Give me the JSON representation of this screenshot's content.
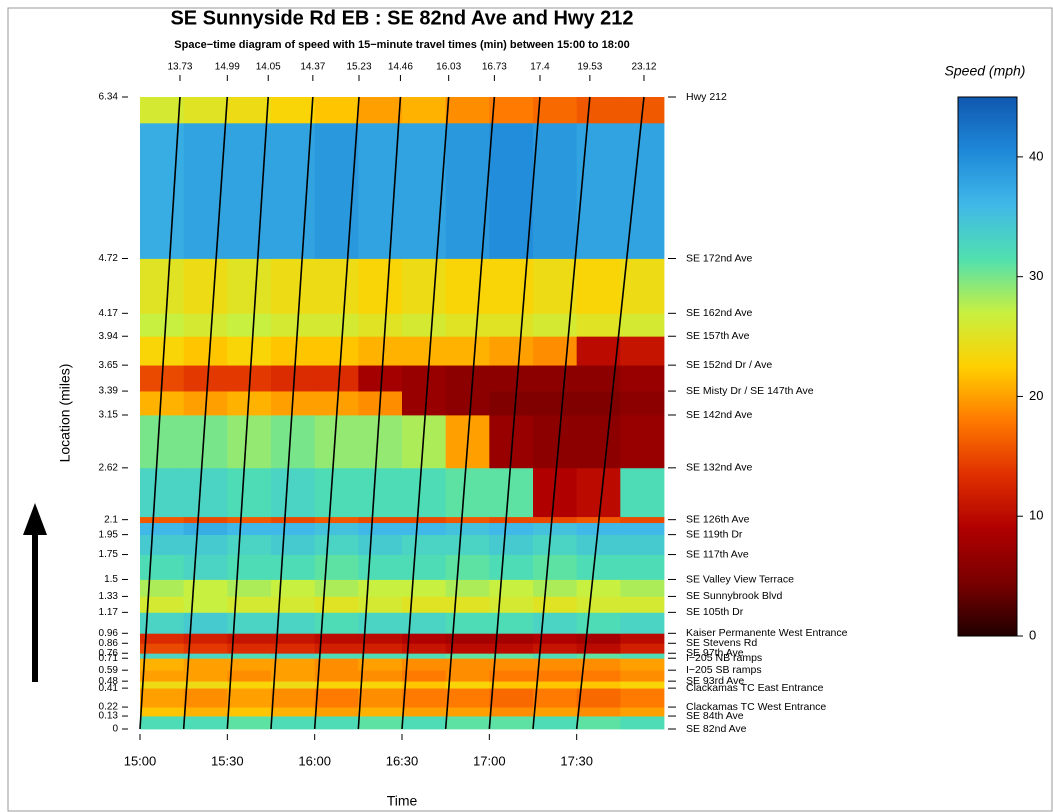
{
  "chart_data": {
    "type": "heatmap",
    "title": "SE Sunnyside Rd EB : SE 82nd Ave and Hwy 212",
    "subtitle": "Space−time diagram of speed with 15−minute travel times (min) between 15:00 to 18:00",
    "xlabel": "Time",
    "ylabel": "Location (miles)",
    "colorbar_label": "Speed (mph)",
    "xlim": [
      0,
      180
    ],
    "xticks": [
      {
        "value": 0,
        "label": "15:00"
      },
      {
        "value": 30,
        "label": "15:30"
      },
      {
        "value": 60,
        "label": "16:00"
      },
      {
        "value": 90,
        "label": "16:30"
      },
      {
        "value": 120,
        "label": "17:00"
      },
      {
        "value": 150,
        "label": "17:30"
      }
    ],
    "ylim": [
      0,
      6.34
    ],
    "yticks": [
      0,
      0.13,
      0.22,
      0.41,
      0.48,
      0.59,
      0.71,
      0.76,
      0.86,
      0.96,
      1.17,
      1.33,
      1.5,
      1.75,
      1.95,
      2.1,
      2.62,
      3.15,
      3.39,
      3.65,
      3.94,
      4.17,
      4.72,
      6.34
    ],
    "location_names": [
      "SE 82nd Ave",
      "SE 84th Ave",
      "Clackamas TC West Entrance",
      "Clackamas TC East Entrance",
      "SE 93rd Ave",
      "I−205 SB ramps",
      "I−205 NB ramps",
      "SE 97th Ave",
      "SE Stevens Rd",
      "Kaiser Permanente West Entrance",
      "SE 105th Dr",
      "SE Sunnybrook Blvd",
      "SE Valley View Terrace",
      "SE 117th Ave",
      "SE 119th Dr",
      "SE 126th Ave",
      "SE 132nd Ave",
      "SE 142nd Ave",
      "SE Misty Dr / SE 147th Ave",
      "SE 152nd Dr / Ave",
      "SE 157th Ave",
      "SE 162nd Ave",
      "SE 172nd Ave",
      "Hwy 212"
    ],
    "zlim": [
      0,
      45
    ],
    "zticks": [
      0,
      10,
      20,
      30,
      40
    ],
    "colors": [
      "#200000",
      "#7a0000",
      "#b00000",
      "#e03000",
      "#ff7a00",
      "#ffd000",
      "#c8f040",
      "#50e0b0",
      "#40b8e8",
      "#1e88d8",
      "#1058b0"
    ],
    "time_bins": [
      0,
      15,
      30,
      45,
      60,
      75,
      90,
      105,
      120,
      135,
      150,
      165,
      180
    ],
    "rows": [
      {
        "from": 0,
        "to": 0.13,
        "speeds": [
          32,
          32,
          31,
          32,
          32,
          31,
          32,
          31,
          31,
          32,
          31,
          32
        ]
      },
      {
        "from": 0.13,
        "to": 0.22,
        "speeds": [
          22,
          21,
          22,
          21,
          20,
          21,
          20,
          20,
          19,
          20,
          19,
          20
        ]
      },
      {
        "from": 0.22,
        "to": 0.41,
        "speeds": [
          20,
          19,
          20,
          19,
          18,
          19,
          18,
          18,
          17,
          18,
          17,
          18
        ]
      },
      {
        "from": 0.41,
        "to": 0.48,
        "speeds": [
          24,
          24,
          23,
          24,
          23,
          23,
          22,
          23,
          22,
          22,
          22,
          23
        ]
      },
      {
        "from": 0.48,
        "to": 0.59,
        "speeds": [
          20,
          20,
          19,
          20,
          19,
          19,
          18,
          19,
          18,
          18,
          18,
          19
        ]
      },
      {
        "from": 0.59,
        "to": 0.71,
        "speeds": [
          21,
          20,
          20,
          20,
          19,
          20,
          19,
          19,
          19,
          19,
          19,
          20
        ]
      },
      {
        "from": 0.71,
        "to": 0.76,
        "speeds": [
          33,
          33,
          32,
          33,
          32,
          32,
          32,
          31,
          31,
          32,
          31,
          32
        ]
      },
      {
        "from": 0.76,
        "to": 0.86,
        "speeds": [
          15,
          14,
          13,
          13,
          12,
          12,
          11,
          10,
          10,
          11,
          10,
          12
        ]
      },
      {
        "from": 0.86,
        "to": 0.96,
        "speeds": [
          13,
          12,
          11,
          11,
          10,
          10,
          9,
          8,
          8,
          9,
          8,
          10
        ]
      },
      {
        "from": 0.96,
        "to": 1.17,
        "speeds": [
          33,
          34,
          33,
          33,
          32,
          33,
          33,
          32,
          32,
          33,
          32,
          33
        ]
      },
      {
        "from": 1.17,
        "to": 1.33,
        "speeds": [
          26,
          27,
          26,
          26,
          25,
          26,
          25,
          25,
          26,
          25,
          26,
          26
        ]
      },
      {
        "from": 1.33,
        "to": 1.5,
        "speeds": [
          28,
          27,
          28,
          27,
          28,
          27,
          27,
          28,
          27,
          28,
          27,
          28
        ]
      },
      {
        "from": 1.5,
        "to": 1.75,
        "speeds": [
          32,
          33,
          32,
          32,
          31,
          32,
          32,
          31,
          32,
          31,
          32,
          32
        ]
      },
      {
        "from": 1.75,
        "to": 1.95,
        "speeds": [
          34,
          34,
          33,
          34,
          33,
          34,
          33,
          33,
          34,
          33,
          34,
          34
        ]
      },
      {
        "from": 1.95,
        "to": 2.07,
        "speeds": [
          36,
          37,
          36,
          36,
          35,
          36,
          36,
          35,
          36,
          35,
          36,
          36
        ]
      },
      {
        "from": 2.07,
        "to": 2.13,
        "speeds": [
          16,
          15,
          16,
          15,
          16,
          15,
          15,
          16,
          15,
          15,
          16,
          15
        ]
      },
      {
        "from": 2.13,
        "to": 2.62,
        "speeds": [
          33,
          33,
          32,
          33,
          32,
          32,
          32,
          31,
          31,
          9,
          10,
          32
        ]
      },
      {
        "from": 2.62,
        "to": 3.15,
        "speeds": [
          30,
          30,
          29,
          30,
          29,
          29,
          28,
          20,
          7,
          6,
          6,
          7
        ]
      },
      {
        "from": 3.15,
        "to": 3.39,
        "speeds": [
          21,
          20,
          21,
          20,
          20,
          19,
          7,
          6,
          5,
          5,
          5,
          6
        ]
      },
      {
        "from": 3.39,
        "to": 3.65,
        "speeds": [
          15,
          14,
          14,
          13,
          13,
          8,
          7,
          6,
          6,
          6,
          6,
          7
        ]
      },
      {
        "from": 3.65,
        "to": 3.94,
        "speeds": [
          23,
          22,
          23,
          22,
          22,
          21,
          21,
          21,
          20,
          19,
          10,
          11
        ]
      },
      {
        "from": 3.94,
        "to": 4.17,
        "speeds": [
          27,
          26,
          27,
          26,
          26,
          25,
          26,
          25,
          25,
          26,
          25,
          26
        ]
      },
      {
        "from": 4.17,
        "to": 4.72,
        "speeds": [
          25,
          24,
          25,
          24,
          24,
          23,
          24,
          23,
          23,
          24,
          23,
          24
        ]
      },
      {
        "from": 4.72,
        "to": 6.08,
        "speeds": [
          37,
          38,
          38,
          38,
          39,
          38,
          38,
          39,
          40,
          39,
          38,
          38
        ]
      },
      {
        "from": 6.08,
        "to": 6.34,
        "speeds": [
          26,
          25,
          24,
          23,
          22,
          20,
          21,
          19,
          18,
          17,
          16,
          16
        ]
      }
    ],
    "trajectories": [
      {
        "start": 0,
        "travel_time": 13.73
      },
      {
        "start": 15,
        "travel_time": 14.99
      },
      {
        "start": 30,
        "travel_time": 14.05
      },
      {
        "start": 45,
        "travel_time": 14.37
      },
      {
        "start": 60,
        "travel_time": 15.23
      },
      {
        "start": 75,
        "travel_time": 14.46
      },
      {
        "start": 90,
        "travel_time": 16.03
      },
      {
        "start": 105,
        "travel_time": 16.73
      },
      {
        "start": 120,
        "travel_time": 17.4
      },
      {
        "start": 135,
        "travel_time": 19.53
      },
      {
        "start": 150,
        "travel_time": 23.12
      }
    ]
  }
}
